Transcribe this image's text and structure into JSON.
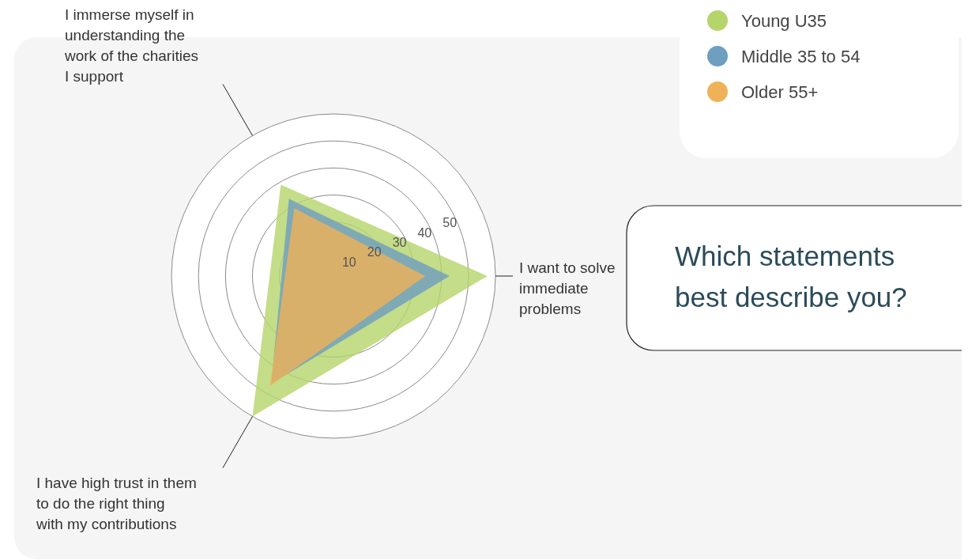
{
  "chart_data": {
    "type": "radar",
    "title": "Which statements best describe you?",
    "categories": [
      "I want to solve immediate problems",
      "I have high trust in them to do the right thing with my contributions",
      "I immerse myself in understanding the work of the charities I support"
    ],
    "series": [
      {
        "name": "Young U35",
        "color": "#b5d56a",
        "values": [
          57,
          60,
          39
        ]
      },
      {
        "name": "Middle 35 to 54",
        "color": "#6e9ec0",
        "values": [
          43,
          46,
          33
        ]
      },
      {
        "name": "Older 55+",
        "color": "#f0b258",
        "values": [
          34,
          47,
          29
        ]
      }
    ],
    "ylim": [
      0,
      60
    ],
    "yticks": [
      10,
      20,
      30,
      40,
      50
    ],
    "grid": true,
    "legend": "top right"
  }
}
